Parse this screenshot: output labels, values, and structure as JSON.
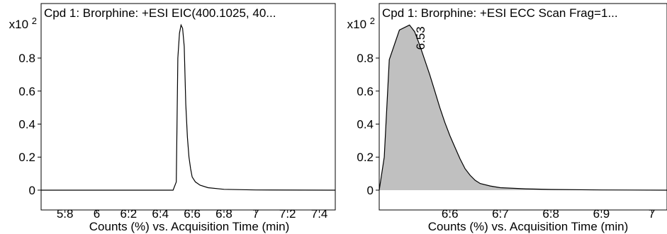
{
  "chart_data": [
    {
      "type": "line",
      "title": "Cpd 1: Brorphine: +ESI EIC(400.1025, 40...",
      "xlabel": "Counts (%) vs. Acquisition Time (min)",
      "ylabel": "",
      "y_multiplier_label": "x10 2",
      "xlim": [
        5.65,
        7.5
      ],
      "ylim": [
        -0.12,
        1.13
      ],
      "xticks": [
        5.8,
        6.0,
        6.2,
        6.4,
        6.6,
        6.8,
        7.0,
        7.2,
        7.4
      ],
      "xtick_labels": [
        "5.8",
        "6",
        "6.2",
        "6.4",
        "6.6",
        "6.8",
        "7",
        "7.2",
        "7.4"
      ],
      "yticks": [
        0,
        0.2,
        0.4,
        0.6,
        0.8
      ],
      "ytick_labels": [
        "0",
        "0.2",
        "0.4",
        "0.6",
        "0.8"
      ],
      "fill": false,
      "line_color": "#000000",
      "series": [
        {
          "x": [
            5.65,
            6.48,
            6.5,
            6.51,
            6.52,
            6.53,
            6.54,
            6.55,
            6.56,
            6.57,
            6.58,
            6.59,
            6.6,
            6.62,
            6.65,
            6.7,
            6.8,
            7.0,
            7.5
          ],
          "y": [
            0,
            0,
            0.05,
            0.8,
            0.95,
            1.0,
            0.98,
            0.87,
            0.52,
            0.32,
            0.2,
            0.13,
            0.08,
            0.05,
            0.03,
            0.015,
            0.005,
            0.001,
            0
          ]
        }
      ]
    },
    {
      "type": "area",
      "title": "Cpd 1: Brorphine: +ESI ECC Scan Frag=1...",
      "xlabel": "Counts (%) vs. Acquisition Time (min)",
      "ylabel": "",
      "y_multiplier_label": "x10 2",
      "xlim": [
        6.46,
        7.03
      ],
      "ylim": [
        -0.12,
        1.13
      ],
      "xticks": [
        6.6,
        6.7,
        6.8,
        6.9,
        7.0
      ],
      "xtick_labels": [
        "6.6",
        "6.7",
        "6.8",
        "6.9",
        "7"
      ],
      "yticks": [
        0,
        0.2,
        0.4,
        0.6,
        0.8
      ],
      "ytick_labels": [
        "0",
        "0.2",
        "0.4",
        "0.6",
        "0.8"
      ],
      "fill": true,
      "fill_color": "#c0c0c0",
      "line_color": "#000000",
      "peak_label": {
        "text": "6.53",
        "x": 6.53,
        "y": 1.0
      },
      "series": [
        {
          "x": [
            6.46,
            6.47,
            6.48,
            6.5,
            6.52,
            6.53,
            6.54,
            6.55,
            6.56,
            6.57,
            6.58,
            6.59,
            6.6,
            6.61,
            6.62,
            6.63,
            6.64,
            6.65,
            6.66,
            6.68,
            6.7,
            6.75,
            6.8,
            6.9,
            7.03
          ],
          "y": [
            0,
            0.2,
            0.79,
            0.97,
            1.0,
            0.96,
            0.88,
            0.79,
            0.7,
            0.6,
            0.5,
            0.41,
            0.33,
            0.26,
            0.19,
            0.13,
            0.09,
            0.06,
            0.04,
            0.025,
            0.015,
            0.008,
            0.004,
            0.001,
            0
          ]
        }
      ]
    }
  ]
}
